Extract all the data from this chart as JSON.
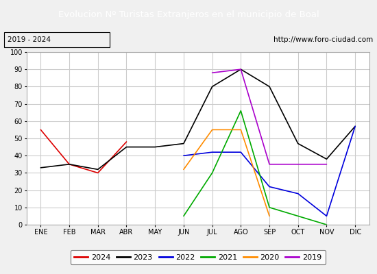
{
  "title": "Evolucion Nº Turistas Extranjeros en el municipio de Boal",
  "subtitle_left": "2019 - 2024",
  "subtitle_right": "http://www.foro-ciudad.com",
  "title_bg_color": "#4a7cc7",
  "title_text_color": "#ffffff",
  "subtitle_bg_color": "#e8e8e8",
  "subtitle_text_color": "#000000",
  "months": [
    "ENE",
    "FEB",
    "MAR",
    "ABR",
    "MAY",
    "JUN",
    "JUL",
    "AGO",
    "SEP",
    "OCT",
    "NOV",
    "DIC"
  ],
  "ylim": [
    0,
    100
  ],
  "yticks": [
    0,
    10,
    20,
    30,
    40,
    50,
    60,
    70,
    80,
    90,
    100
  ],
  "series": {
    "2024": {
      "color": "#dd0000",
      "data": [
        55,
        35,
        30,
        48,
        null,
        null,
        null,
        null,
        null,
        null,
        null,
        null
      ]
    },
    "2023": {
      "color": "#000000",
      "data": [
        33,
        35,
        32,
        45,
        45,
        47,
        80,
        90,
        80,
        47,
        38,
        57
      ]
    },
    "2022": {
      "color": "#0000dd",
      "data": [
        null,
        null,
        null,
        null,
        null,
        40,
        42,
        42,
        22,
        18,
        5,
        57
      ]
    },
    "2021": {
      "color": "#00aa00",
      "data": [
        null,
        null,
        null,
        null,
        null,
        5,
        30,
        66,
        10,
        5,
        0,
        null
      ]
    },
    "2020": {
      "color": "#ff8c00",
      "data": [
        null,
        null,
        null,
        null,
        null,
        32,
        55,
        55,
        5,
        null,
        null,
        null
      ]
    },
    "2019": {
      "color": "#aa00cc",
      "data": [
        null,
        null,
        null,
        null,
        null,
        null,
        88,
        90,
        35,
        35,
        35,
        null
      ]
    }
  },
  "legend_order": [
    "2024",
    "2023",
    "2022",
    "2021",
    "2020",
    "2019"
  ],
  "bg_color": "#f0f0f0",
  "plot_bg_color": "#f0f0f0",
  "grid_color": "#cccccc"
}
